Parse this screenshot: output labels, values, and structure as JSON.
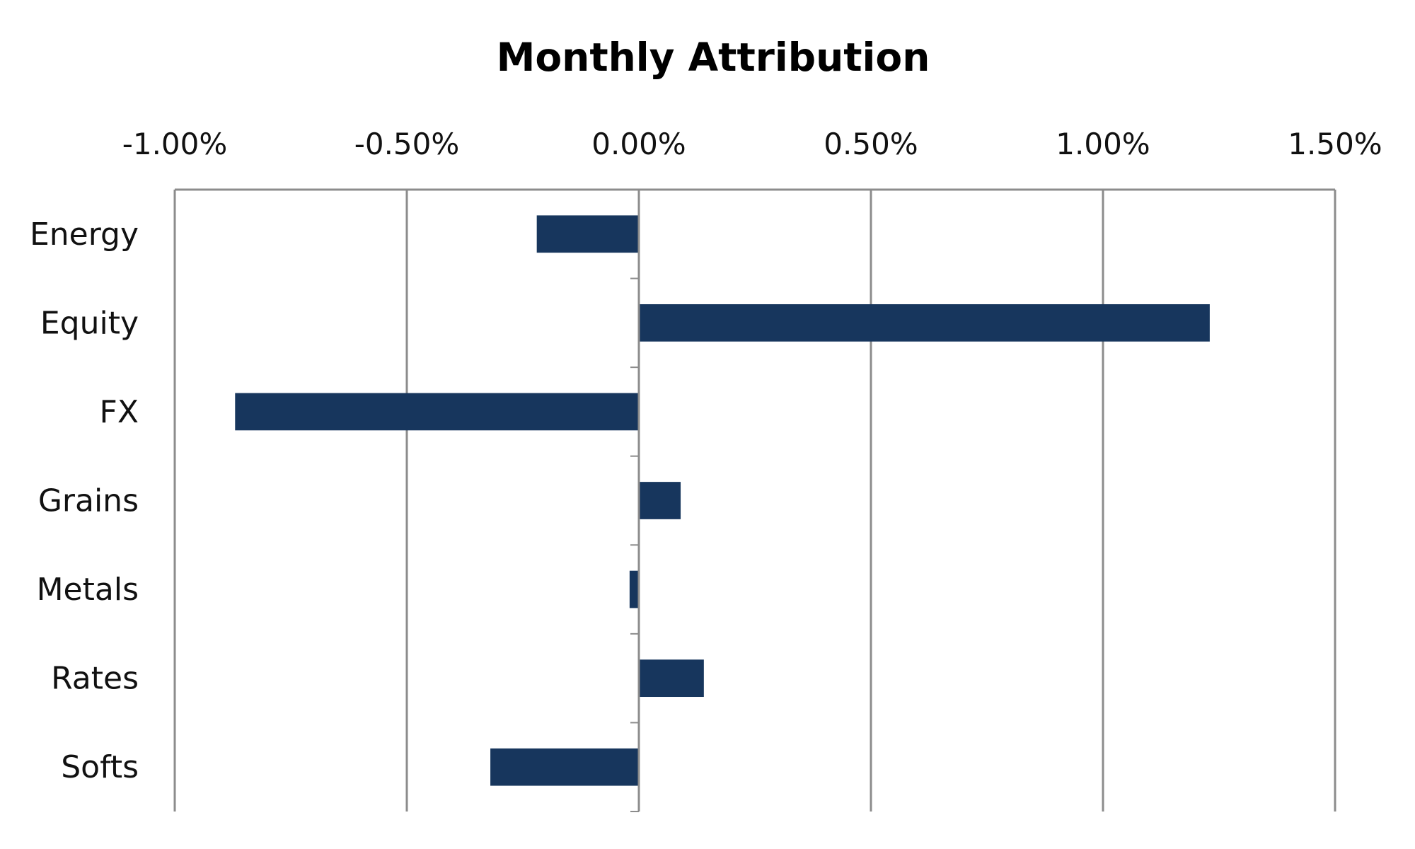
{
  "chart_data": {
    "type": "bar",
    "orientation": "horizontal",
    "title": "Monthly Attribution",
    "xlabel": "",
    "ylabel": "",
    "categories": [
      "Energy",
      "Equity",
      "FX",
      "Grains",
      "Metals",
      "Rates",
      "Softs"
    ],
    "values": [
      -0.0022,
      0.0123,
      -0.0087,
      0.0009,
      -0.0002,
      0.0014,
      -0.0032
    ],
    "xlim": [
      -0.01,
      0.015
    ],
    "x_ticks": [
      -0.01,
      -0.005,
      0,
      0.005,
      0.01,
      0.015
    ],
    "x_tick_labels": [
      "-1.00%",
      "-0.50%",
      "0.00%",
      "0.50%",
      "1.00%",
      "1.50%"
    ],
    "x_axis_position": "top",
    "grid": true,
    "legend": "none",
    "colors": {
      "bar": "#17365d",
      "grid": "#8c8c8c"
    }
  }
}
